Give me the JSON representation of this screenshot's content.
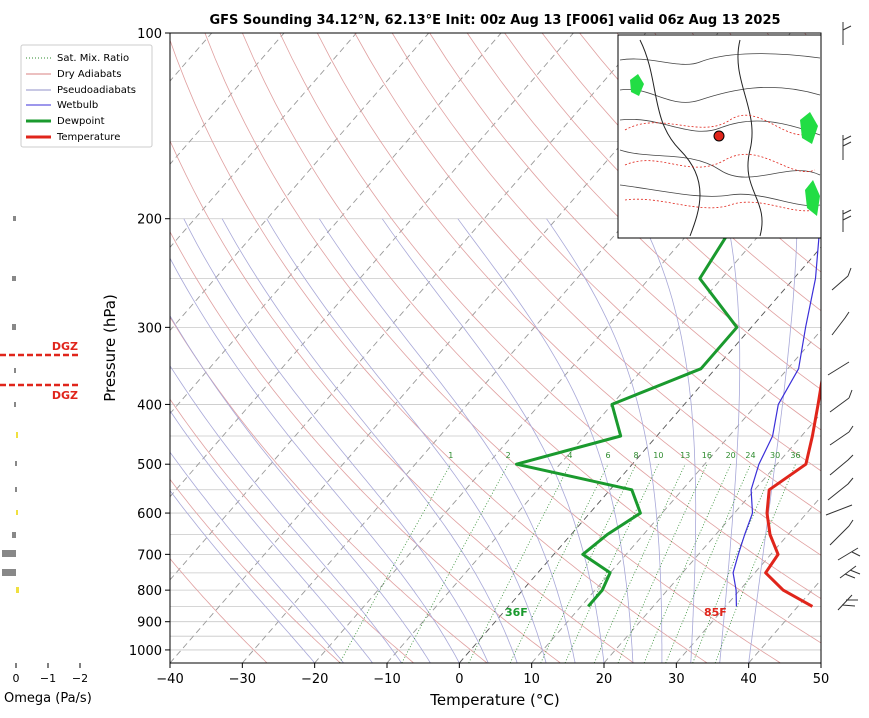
{
  "chart_data": {
    "type": "line",
    "title": "GFS Sounding 34.12°N, 62.13°E Init: 00z Aug 13 [F006] valid 06z Aug 13 2025",
    "xlabel": "Temperature (°C)",
    "ylabel": "Pressure (hPa)",
    "xlim": [
      -40,
      50
    ],
    "ylim": [
      1050,
      100
    ],
    "y_scale": "log",
    "x_ticks": [
      -40,
      -30,
      -20,
      -10,
      0,
      10,
      20,
      30,
      40,
      50
    ],
    "y_ticks": [
      100,
      200,
      300,
      400,
      500,
      600,
      700,
      800,
      900,
      1000
    ],
    "grid": true,
    "legend_position": "top-left",
    "legend": [
      {
        "label": "Sat. Mix. Ratio",
        "color": "#2e8b2e"
      },
      {
        "label": "Dry Adiabats",
        "color": "#d98080"
      },
      {
        "label": "Pseudoadiabats",
        "color": "#9090c8"
      },
      {
        "label": "Wetbulb",
        "color": "#3b2fd9"
      },
      {
        "label": "Dewpoint",
        "color": "#1a9a2e"
      },
      {
        "label": "Temperature",
        "color": "#e0251b"
      }
    ],
    "series": [
      {
        "name": "Temperature",
        "color": "#e0251b",
        "pressure": [
          100,
          150,
          200,
          250,
          300,
          350,
          400,
          450,
          500,
          550,
          600,
          650,
          700,
          750,
          800,
          850
        ],
        "values": [
          -15.5,
          -9,
          -2.5,
          5,
          10,
          15,
          18.5,
          21.5,
          24,
          22,
          24.5,
          27.5,
          31,
          31.5,
          36,
          42
        ]
      },
      {
        "name": "Dewpoint",
        "color": "#1a9a2e",
        "pressure": [
          100,
          150,
          200,
          250,
          300,
          350,
          400,
          450,
          500,
          550,
          600,
          650,
          700,
          750,
          800,
          850
        ],
        "values": [
          -23,
          -21,
          -15,
          -13,
          -2,
          -2,
          -10,
          -5,
          -16,
          3,
          7,
          5,
          4,
          10,
          11,
          11
        ]
      },
      {
        "name": "Wetbulb",
        "color": "#3b2fd9",
        "pressure": [
          150,
          200,
          250,
          300,
          350,
          400,
          450,
          500,
          550,
          600,
          650,
          700,
          750,
          800,
          850
        ],
        "values": [
          -9,
          -3.5,
          3,
          7.5,
          11.5,
          13,
          16,
          17.5,
          19.5,
          22.5,
          24,
          25.5,
          27,
          29.5,
          31.5
        ]
      }
    ],
    "mixing_ratio_labels": [
      "1",
      "2",
      "4",
      "6",
      "8",
      "10",
      "13",
      "16",
      "20",
      "24",
      "30",
      "36"
    ],
    "surface_labels": {
      "temperature": "85F",
      "dewpoint": "36F"
    },
    "dgz_label": "DGZ",
    "omega_axis": {
      "label": "Omega (Pa/s)",
      "ticks": [
        "0",
        "−1",
        "−2"
      ]
    }
  }
}
